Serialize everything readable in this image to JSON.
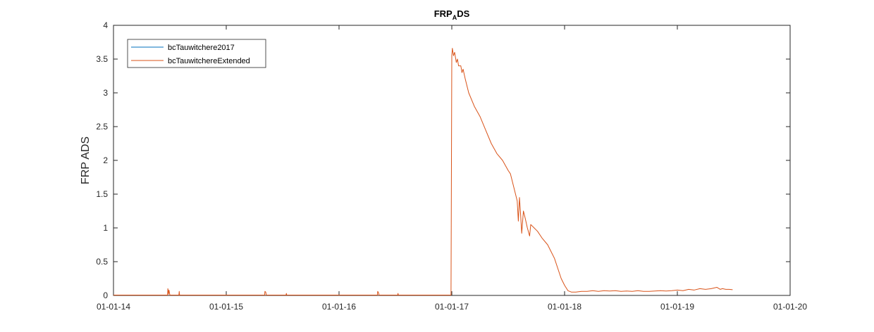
{
  "chart_data": {
    "type": "line",
    "title_main": "FRP",
    "title_sub": "A",
    "title_end": "DS",
    "xlabel": "",
    "ylabel": "FRP ADS",
    "x_ticks": [
      "01-01-14",
      "01-01-15",
      "01-01-16",
      "01-01-17",
      "01-01-18",
      "01-01-19",
      "01-01-20"
    ],
    "y_ticks": [
      "0",
      "0.5",
      "1",
      "1.5",
      "2",
      "2.5",
      "3",
      "3.5",
      "4"
    ],
    "xlim": [
      2014.0,
      2020.0
    ],
    "ylim": [
      0,
      4
    ],
    "grid": false,
    "legend_position": "top-left",
    "series": [
      {
        "name": "bcTauwitchere2017",
        "color": "#0072BD",
        "points": []
      },
      {
        "name": "bcTauwitchereExtended",
        "color": "#D95319",
        "points": [
          [
            2014.0,
            0.005
          ],
          [
            2014.48,
            0.005
          ],
          [
            2014.482,
            0.1
          ],
          [
            2014.487,
            0.02
          ],
          [
            2014.492,
            0.08
          ],
          [
            2014.5,
            0.005
          ],
          [
            2014.58,
            0.005
          ],
          [
            2014.583,
            0.06
          ],
          [
            2014.586,
            0.005
          ],
          [
            2015.0,
            0.005
          ],
          [
            2015.34,
            0.005
          ],
          [
            2015.343,
            0.06
          ],
          [
            2015.35,
            0.05
          ],
          [
            2015.355,
            0.005
          ],
          [
            2015.53,
            0.005
          ],
          [
            2015.533,
            0.03
          ],
          [
            2015.536,
            0.005
          ],
          [
            2016.0,
            0.005
          ],
          [
            2016.34,
            0.005
          ],
          [
            2016.343,
            0.06
          ],
          [
            2016.35,
            0.04
          ],
          [
            2016.355,
            0.005
          ],
          [
            2016.52,
            0.005
          ],
          [
            2016.523,
            0.03
          ],
          [
            2016.526,
            0.005
          ],
          [
            2016.993,
            0.005
          ],
          [
            2017.0,
            3.55
          ],
          [
            2017.005,
            3.66
          ],
          [
            2017.015,
            3.55
          ],
          [
            2017.025,
            3.6
          ],
          [
            2017.04,
            3.45
          ],
          [
            2017.05,
            3.5
          ],
          [
            2017.06,
            3.4
          ],
          [
            2017.08,
            3.4
          ],
          [
            2017.09,
            3.3
          ],
          [
            2017.1,
            3.35
          ],
          [
            2017.12,
            3.2
          ],
          [
            2017.15,
            3.0
          ],
          [
            2017.2,
            2.8
          ],
          [
            2017.25,
            2.65
          ],
          [
            2017.3,
            2.45
          ],
          [
            2017.35,
            2.25
          ],
          [
            2017.4,
            2.1
          ],
          [
            2017.45,
            2.0
          ],
          [
            2017.5,
            1.85
          ],
          [
            2017.52,
            1.8
          ],
          [
            2017.55,
            1.6
          ],
          [
            2017.58,
            1.4
          ],
          [
            2017.59,
            1.1
          ],
          [
            2017.6,
            1.45
          ],
          [
            2017.61,
            1.2
          ],
          [
            2017.62,
            0.92
          ],
          [
            2017.635,
            1.25
          ],
          [
            2017.65,
            1.15
          ],
          [
            2017.67,
            1.0
          ],
          [
            2017.69,
            0.88
          ],
          [
            2017.7,
            1.05
          ],
          [
            2017.73,
            1.0
          ],
          [
            2017.76,
            0.95
          ],
          [
            2017.8,
            0.85
          ],
          [
            2017.85,
            0.75
          ],
          [
            2017.88,
            0.65
          ],
          [
            2017.91,
            0.55
          ],
          [
            2017.94,
            0.4
          ],
          [
            2017.97,
            0.25
          ],
          [
            2018.0,
            0.15
          ],
          [
            2018.03,
            0.07
          ],
          [
            2018.06,
            0.05
          ],
          [
            2018.1,
            0.05
          ],
          [
            2018.15,
            0.06
          ],
          [
            2018.2,
            0.06
          ],
          [
            2018.25,
            0.07
          ],
          [
            2018.3,
            0.06
          ],
          [
            2018.35,
            0.07
          ],
          [
            2018.4,
            0.065
          ],
          [
            2018.45,
            0.07
          ],
          [
            2018.5,
            0.06
          ],
          [
            2018.55,
            0.065
          ],
          [
            2018.6,
            0.06
          ],
          [
            2018.65,
            0.07
          ],
          [
            2018.7,
            0.06
          ],
          [
            2018.75,
            0.06
          ],
          [
            2018.8,
            0.065
          ],
          [
            2018.85,
            0.07
          ],
          [
            2018.9,
            0.065
          ],
          [
            2018.95,
            0.07
          ],
          [
            2019.0,
            0.08
          ],
          [
            2019.05,
            0.07
          ],
          [
            2019.1,
            0.09
          ],
          [
            2019.15,
            0.08
          ],
          [
            2019.2,
            0.1
          ],
          [
            2019.25,
            0.09
          ],
          [
            2019.3,
            0.1
          ],
          [
            2019.35,
            0.12
          ],
          [
            2019.38,
            0.09
          ],
          [
            2019.4,
            0.1
          ],
          [
            2019.43,
            0.09
          ],
          [
            2019.46,
            0.09
          ],
          [
            2019.49,
            0.085
          ]
        ]
      }
    ]
  }
}
